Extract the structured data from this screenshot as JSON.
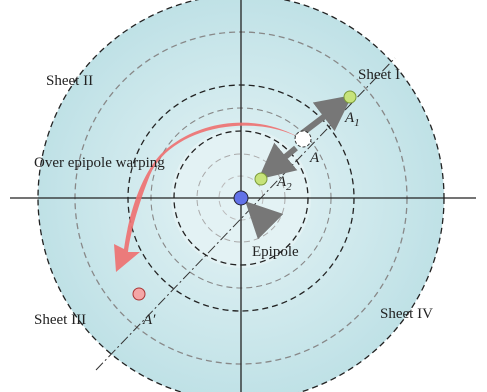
{
  "labels": {
    "sheet_1": "Sheet I",
    "sheet_2": "Sheet II",
    "sheet_3": "Sheet III",
    "sheet_4": "Sheet IV",
    "warping": "Over epipole warping",
    "epipole": "Epipole"
  },
  "points": {
    "a1": {
      "name": "A",
      "sub": "1"
    },
    "a": {
      "name": "A"
    },
    "a2": {
      "name": "A",
      "sub": "2"
    },
    "a_prime": {
      "name": "A′"
    }
  }
}
